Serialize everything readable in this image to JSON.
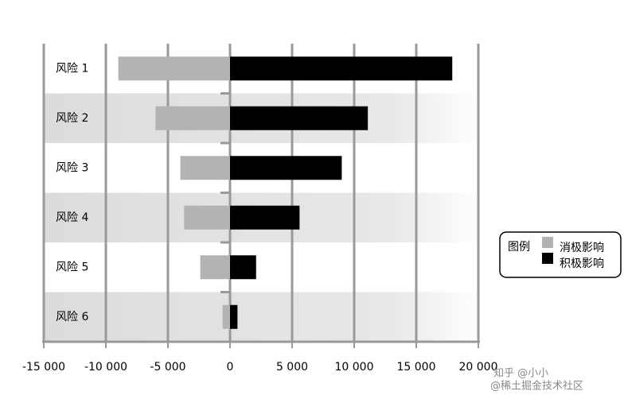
{
  "chart_data": {
    "type": "bar",
    "orientation": "horizontal",
    "stacked": false,
    "categories": [
      "风险 1",
      "风险 2",
      "风险 3",
      "风险 4",
      "风险 5",
      "风险 6"
    ],
    "series": [
      {
        "name": "消极影响",
        "color": "#b3b3b3",
        "values": [
          -9000,
          -6000,
          -4000,
          -3700,
          -2400,
          -600
        ]
      },
      {
        "name": "积极影响",
        "color": "#000000",
        "values": [
          17900,
          11100,
          9000,
          5600,
          2100,
          600
        ]
      }
    ],
    "xlim": [
      -15000,
      20000
    ],
    "xticks": [
      {
        "value": -15000,
        "label": "-15 000"
      },
      {
        "value": -10000,
        "label": "-10 000"
      },
      {
        "value": -5000,
        "label": "-5 000"
      },
      0,
      {
        "value": 5000,
        "label": "5 000"
      },
      {
        "value": 10000,
        "label": "10 000"
      },
      {
        "value": 15000,
        "label": "15 000"
      },
      {
        "value": 20000,
        "label": "20 000"
      }
    ],
    "grid": true,
    "legend": {
      "title": "图例",
      "position": "right"
    },
    "watermark": [
      "知乎 @小小",
      "@稀土掘金技术社区"
    ]
  }
}
